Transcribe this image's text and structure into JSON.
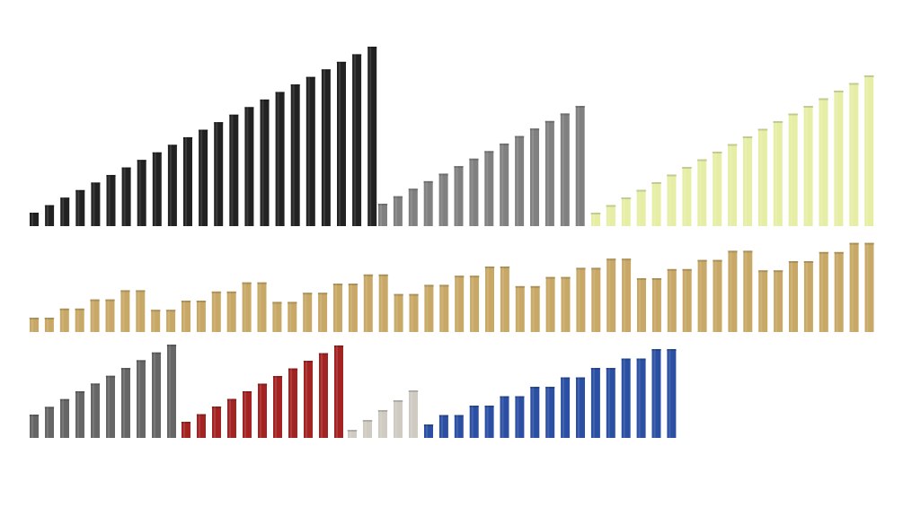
{
  "groups": [
    {
      "color": "#222222"
    },
    {
      "color": "#808080"
    },
    {
      "color": "#e6eea6"
    },
    {
      "color": "#c8a866"
    },
    {
      "color": "#666666"
    },
    {
      "color": "#a32323"
    },
    {
      "color": "#cfcbc2"
    },
    {
      "color": "#2b50a3"
    }
  ]
}
